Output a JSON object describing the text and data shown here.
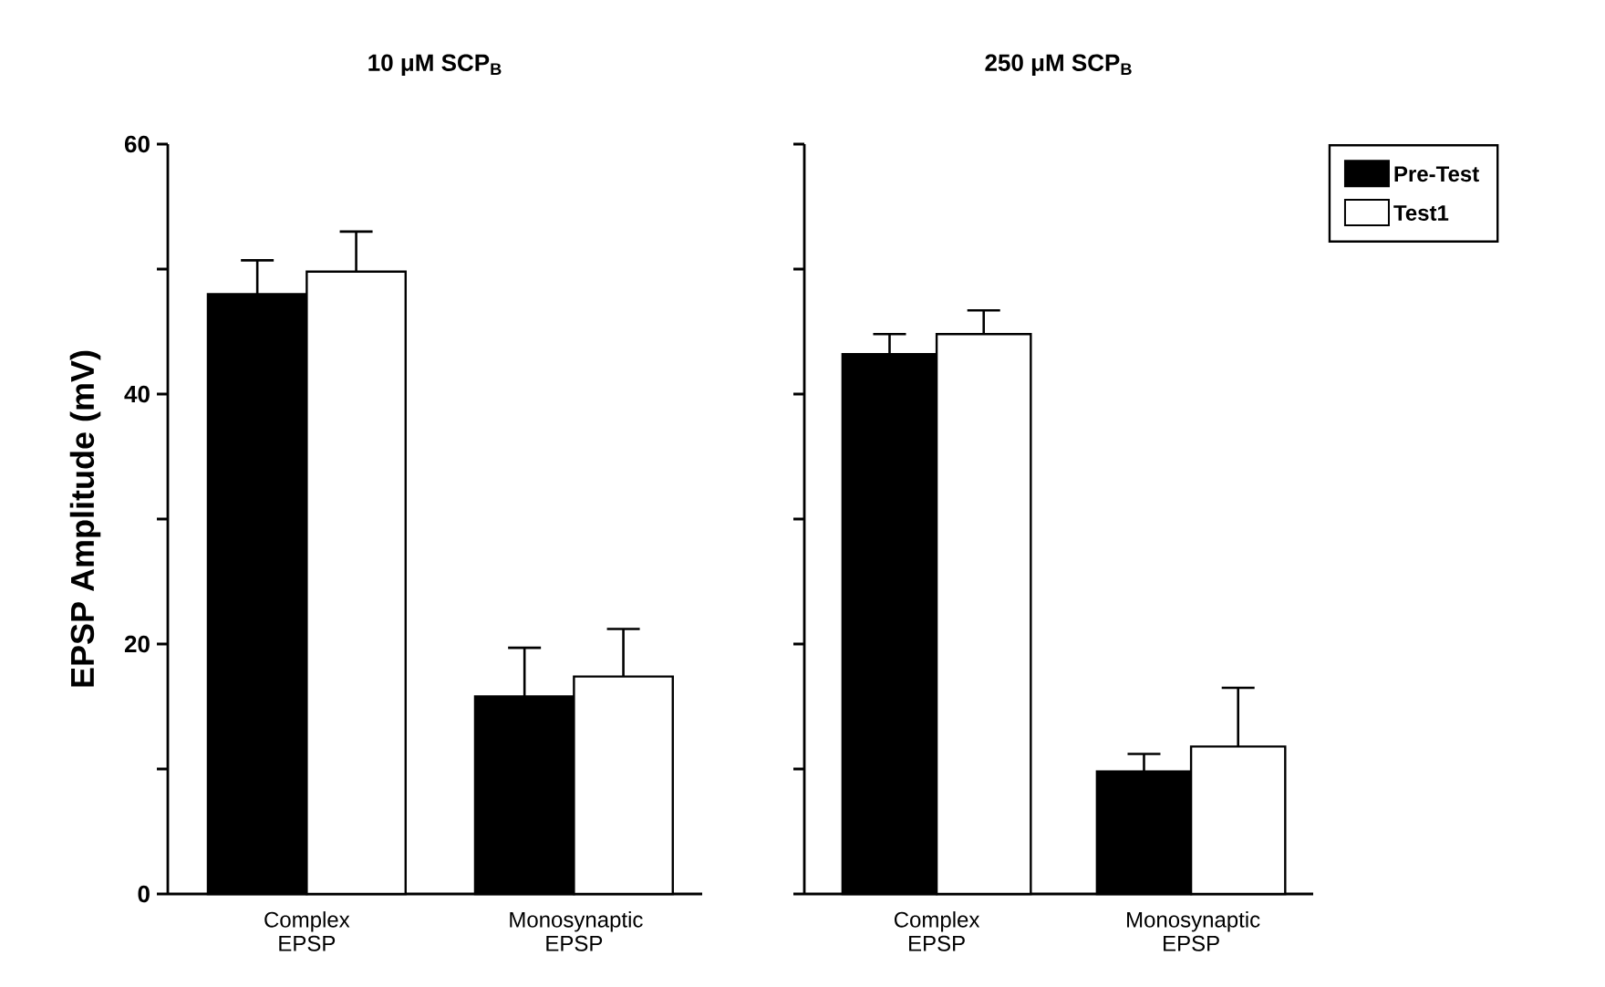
{
  "chart_data": [
    {
      "type": "bar",
      "title": "10 μM SCP$_{B}$",
      "ylabel": "EPSP Amplitude (mV)",
      "categories": [
        "Complex EPSP",
        "Monosynaptic EPSP"
      ],
      "series": [
        {
          "color": "#000000",
          "values": [
            48,
            15.8
          ],
          "errors": [
            2.7,
            3.9
          ]
        },
        {
          "color": "#ffffff",
          "values": [
            49.8,
            17.4
          ],
          "errors": [
            3.2,
            3.8
          ]
        }
      ],
      "ylim": [
        0,
        60
      ],
      "yticks": [
        0,
        {
          "value": 10,
          "label": null
        },
        20,
        {
          "value": 30,
          "label": null
        },
        40,
        {
          "value": 50,
          "label": null
        },
        60
      ],
      "legend": false
    },
    {
      "type": "bar",
      "title": "250 μM SCP$_{B}$",
      "categories": [
        "Complex EPSP",
        "Monosynaptic EPSP"
      ],
      "series": [
        {
          "name": "Pre-Test",
          "color": "#000000",
          "values": [
            43.2,
            9.8
          ],
          "errors": [
            1.6,
            1.4
          ]
        },
        {
          "name": "Test1",
          "color": "#ffffff",
          "values": [
            44.8,
            11.8
          ],
          "errors": [
            1.9,
            4.7
          ]
        }
      ],
      "ylim": [
        0,
        60
      ],
      "yticks": [
        {
          "value": 0,
          "label": null
        },
        {
          "value": 10,
          "label": null
        },
        {
          "value": 20,
          "label": null
        },
        {
          "value": 30,
          "label": null
        },
        {
          "value": 40,
          "label": null
        },
        {
          "value": 50,
          "label": null
        },
        {
          "value": 60,
          "label": null
        }
      ],
      "tick_labels": "x",
      "legend": "top right"
    }
  ]
}
